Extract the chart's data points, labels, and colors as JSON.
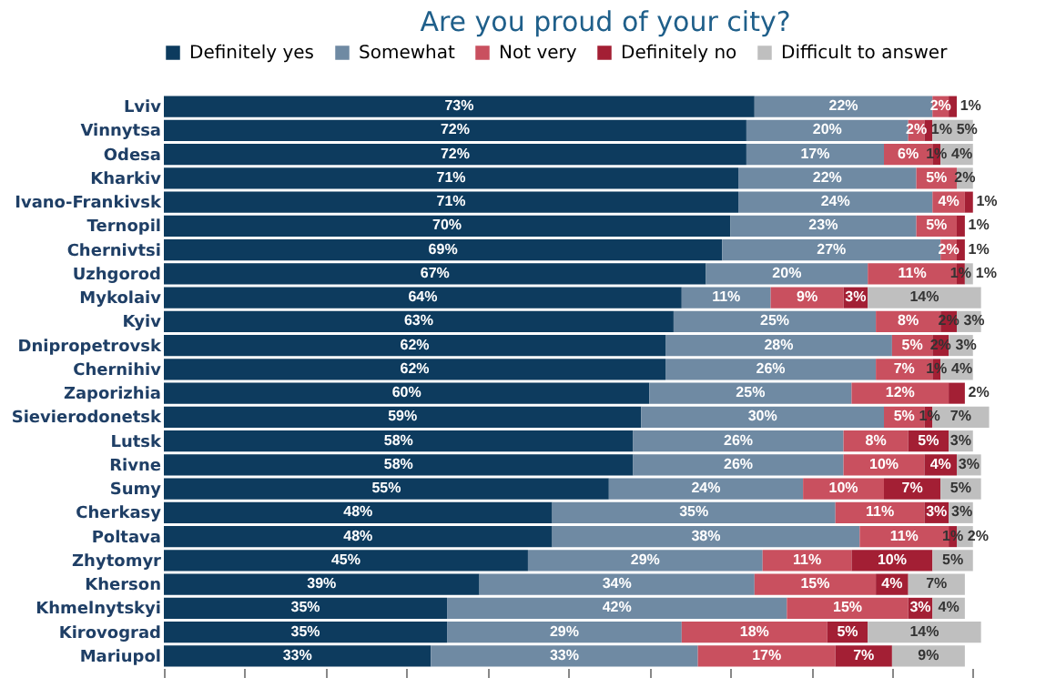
{
  "chart_data": {
    "type": "bar",
    "title": "Are you proud of your city?",
    "orientation": "horizontal",
    "stacked": true,
    "legend": "top",
    "grid": false,
    "tick_labels": "y",
    "categories": [
      "Lviv",
      "Vinnytsa",
      "Odesa",
      "Kharkiv",
      "Ivano-Frankivsk",
      "Ternopil",
      "Chernivtsi",
      "Uzhgorod",
      "Mykolaiv",
      "Kyiv",
      "Dnipropetrovsk",
      "Chernihiv",
      "Zaporizhia",
      "Sievierodonetsk",
      "Lutsk",
      "Rivne",
      "Sumy",
      "Cherkasy",
      "Poltava",
      "Zhytomyr",
      "Kherson",
      "Khmelnytskyi",
      "Kirovograd",
      "Mariupol"
    ],
    "series": [
      {
        "name": "Definitely yes",
        "color": "#0d3b5e",
        "values": [
          73,
          72,
          72,
          71,
          71,
          70,
          69,
          67,
          64,
          63,
          62,
          62,
          60,
          59,
          58,
          58,
          55,
          48,
          48,
          45,
          39,
          35,
          35,
          33
        ],
        "value_labels": [
          "73%",
          "72%",
          "72%",
          "71%",
          "71%",
          "70%",
          "69%",
          "67%",
          "64%",
          "63%",
          "62%",
          "62%",
          "60%",
          "59%",
          "58%",
          "58%",
          "55%",
          "48%",
          "48%",
          "45%",
          "39%",
          "35%",
          "35%",
          "33%"
        ]
      },
      {
        "name": "Somewhat",
        "color": "#6f8aa3",
        "values": [
          22,
          20,
          17,
          22,
          24,
          23,
          27,
          20,
          11,
          25,
          28,
          26,
          25,
          30,
          26,
          26,
          24,
          35,
          38,
          29,
          34,
          42,
          29,
          33
        ],
        "value_labels": [
          "22%",
          "20%",
          "17%",
          "22%",
          "24%",
          "23%",
          "27%",
          "20%",
          "11%",
          "25%",
          "28%",
          "26%",
          "25%",
          "30%",
          "26%",
          "26%",
          "24%",
          "35%",
          "38%",
          "29%",
          "34%",
          "42%",
          "29%",
          "33%"
        ]
      },
      {
        "name": "Not very",
        "color": "#c9505f",
        "values": [
          2,
          2,
          6,
          5,
          4,
          5,
          2,
          11,
          9,
          8,
          5,
          7,
          12,
          5,
          8,
          10,
          10,
          11,
          11,
          11,
          15,
          15,
          18,
          17
        ],
        "value_labels": [
          "2%",
          "2%",
          "6%",
          "5%",
          "4%",
          "5%",
          "2%",
          "11%",
          "9%",
          "8%",
          "5%",
          "7%",
          "12%",
          "5%",
          "8%",
          "10%",
          "10%",
          "11%",
          "11%",
          "11%",
          "15%",
          "15%",
          "18%",
          "17%"
        ]
      },
      {
        "name": "Definitely no",
        "color": "#a31f34",
        "values": [
          1,
          1,
          1,
          null,
          1,
          1,
          1,
          1,
          3,
          2,
          2,
          1,
          2,
          1,
          5,
          4,
          7,
          3,
          1,
          10,
          4,
          3,
          5,
          7
        ],
        "value_labels": [
          "1%",
          "1%",
          "1%",
          null,
          "1%",
          "1%",
          "1%",
          "1%",
          "3%",
          "2%",
          "2%",
          "1%",
          "2%",
          "1%",
          "5%",
          "4%",
          "7%",
          "3%",
          "1%",
          "10%",
          "4%",
          "3%",
          "5%",
          "7%"
        ]
      },
      {
        "name": "Difficult to answer",
        "color": "#bfbfbf",
        "values": [
          null,
          5,
          4,
          2,
          null,
          null,
          null,
          1,
          14,
          3,
          3,
          4,
          null,
          7,
          3,
          3,
          5,
          3,
          2,
          5,
          7,
          4,
          14,
          9
        ],
        "value_labels": [
          null,
          "5%",
          "4%",
          "2%",
          null,
          null,
          null,
          "1%",
          "14%",
          "3%",
          "3%",
          "4%",
          null,
          "7%",
          "3%",
          "3%",
          "5%",
          "3%",
          "2%",
          "5%",
          "7%",
          "4%",
          "14%",
          "9%"
        ]
      }
    ]
  }
}
